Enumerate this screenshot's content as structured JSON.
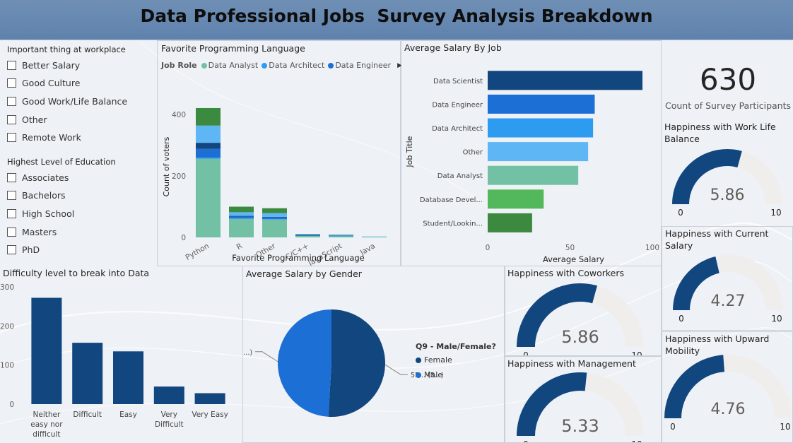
{
  "header": {
    "title": "Data Professional Jobs  Survey Analysis Breakdown"
  },
  "workplace_slicer": {
    "title": "Important thing at workplace",
    "items": [
      "Better Salary",
      "Good Culture",
      "Good Work/Life Balance",
      "Other",
      "Remote Work"
    ]
  },
  "education_slicer": {
    "title": "Highest Level of Education",
    "items": [
      "Associates",
      "Bachelors",
      "High School",
      "Masters",
      "PhD"
    ]
  },
  "kpi": {
    "value": "630",
    "label": "Count of Survey Participants"
  },
  "colors": {
    "dark_blue": "#12467f",
    "blue": "#1c6fd4",
    "light_blue": "#2d9bf0",
    "sky": "#5eb6f4",
    "teal": "#72c1a5",
    "green": "#52b85b",
    "dark_green": "#3c8a40",
    "gauge_bg": "#f0eeec"
  },
  "chart_data": [
    {
      "id": "fav_language",
      "type": "bar",
      "stacked": true,
      "title": "Favorite Programming Language",
      "xlabel": "Favorite Programming Language",
      "ylabel": "Count of voters",
      "legend_title": "Job Role",
      "legend_visible": [
        "Data Analyst",
        "Data Architect",
        "Data Engineer"
      ],
      "categories": [
        "Python",
        "R",
        "Other",
        "C/C++",
        "JavaScript",
        "Java"
      ],
      "yticks": [
        0,
        200,
        400
      ],
      "ylim": [
        0,
        460
      ],
      "series": [
        {
          "name": "Data Analyst",
          "color": "#72c1a5",
          "values": [
            256,
            60,
            58,
            5,
            4,
            2
          ]
        },
        {
          "name": "Data Architect",
          "color": "#2d9bf0",
          "values": [
            4,
            3,
            2,
            1,
            1,
            0
          ]
        },
        {
          "name": "Data Engineer",
          "color": "#1c6fd4",
          "values": [
            28,
            5,
            5,
            1,
            1,
            0
          ]
        },
        {
          "color": "#12467f",
          "values": [
            20,
            2,
            2,
            1,
            0,
            0
          ]
        },
        {
          "color": "#5eb6f4",
          "values": [
            56,
            12,
            12,
            2,
            2,
            1
          ]
        },
        {
          "color": "#3c8a40",
          "values": [
            57,
            18,
            16,
            1,
            1,
            0
          ]
        }
      ]
    },
    {
      "id": "salary_by_job",
      "type": "bar",
      "orientation": "horizontal",
      "title": "Average Salary By Job",
      "xlabel": "Average Salary",
      "ylabel": "Job Title",
      "categories": [
        "Data Scientist",
        "Data Engineer",
        "Data Architect",
        "Other",
        "Data Analyst",
        "Database Devel...",
        "Student/Lookin..."
      ],
      "values": [
        94,
        65,
        64,
        61,
        55,
        34,
        27
      ],
      "colors": [
        "#12467f",
        "#1c6fd4",
        "#2d9bf0",
        "#5eb6f4",
        "#72c1a5",
        "#52b85b",
        "#3c8a40"
      ],
      "xticks": [
        0,
        50,
        100
      ],
      "xlim": [
        0,
        100
      ]
    },
    {
      "id": "difficulty",
      "type": "bar",
      "title": "Difficulty level to break into Data",
      "categories": [
        "Neither easy nor difficult",
        "Difficult",
        "Easy",
        "Very Difficult",
        "Very Easy"
      ],
      "category_lines": [
        [
          "Neither",
          "easy nor",
          "difficult"
        ],
        [
          "Difficult"
        ],
        [
          "Easy"
        ],
        [
          "Very",
          "Difficult"
        ],
        [
          "Very Easy"
        ]
      ],
      "values": [
        272,
        157,
        135,
        45,
        28
      ],
      "yticks": [
        0,
        100,
        200,
        300
      ],
      "ylim": [
        0,
        300
      ],
      "color": "#12467f"
    },
    {
      "id": "salary_by_gender",
      "type": "pie",
      "title": "Average Salary by Gender",
      "legend_title": "Q9 - Male/Female?",
      "slices": [
        {
          "name": "Female",
          "value": 55,
          "label": "55... (5...)",
          "color": "#12467f"
        },
        {
          "name": "Male",
          "value": 53,
          "label": "53... (4...)",
          "color": "#1c6fd4"
        }
      ]
    },
    {
      "id": "gauge_worklife",
      "type": "gauge",
      "title": "Happiness with Work Life Balance",
      "title_lines": [
        "Happiness with Work Life",
        "Balance"
      ],
      "value": 5.86,
      "min": 0,
      "max": 10,
      "value_label": "5.86",
      "min_label": "0",
      "max_label": "10"
    },
    {
      "id": "gauge_salary",
      "type": "gauge",
      "title": "Happiness with Current Salary",
      "title_lines": [
        "Happiness with Current",
        "Salary"
      ],
      "value": 4.27,
      "min": 0,
      "max": 10,
      "value_label": "4.27",
      "min_label": "0",
      "max_label": "10"
    },
    {
      "id": "gauge_upward",
      "type": "gauge",
      "title": "Happiness with Upward Mobility",
      "title_lines": [
        "Happiness with Upward",
        "Mobility"
      ],
      "value": 4.76,
      "min": 0,
      "max": 10,
      "value_label": "4.76",
      "min_label": "0",
      "max_label": "10"
    },
    {
      "id": "gauge_coworkers",
      "type": "gauge",
      "title": "Happiness with Coworkers",
      "title_lines": [
        "Happiness with Coworkers"
      ],
      "value": 5.86,
      "min": 0,
      "max": 10,
      "value_label": "5.86",
      "min_label": "0",
      "max_label": "10"
    },
    {
      "id": "gauge_management",
      "type": "gauge",
      "title": "Happiness with Management",
      "title_lines": [
        "Happiness with Management"
      ],
      "value": 5.33,
      "min": 0,
      "max": 10,
      "value_label": "5.33",
      "min_label": "0",
      "max_label": "10"
    }
  ]
}
